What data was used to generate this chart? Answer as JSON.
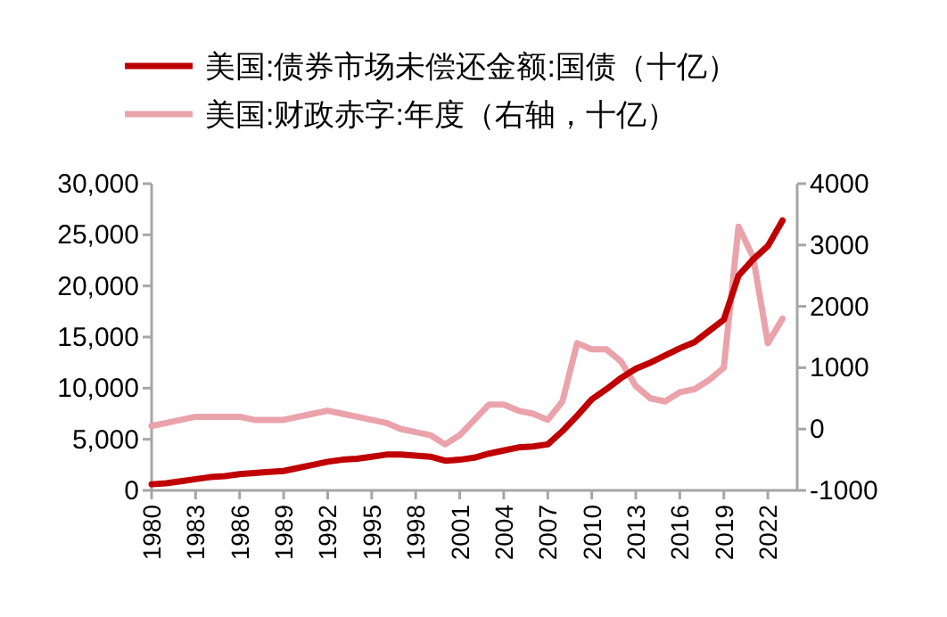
{
  "chart_data": {
    "type": "line",
    "legend": "top",
    "grid": false,
    "x": [
      1980,
      1981,
      1982,
      1983,
      1984,
      1985,
      1986,
      1987,
      1988,
      1989,
      1990,
      1991,
      1992,
      1993,
      1994,
      1995,
      1996,
      1997,
      1998,
      1999,
      2000,
      2001,
      2002,
      2003,
      2004,
      2005,
      2006,
      2007,
      2008,
      2009,
      2010,
      2011,
      2012,
      2013,
      2014,
      2015,
      2016,
      2017,
      2018,
      2019,
      2020,
      2021,
      2022,
      2023
    ],
    "xlim": [
      1980,
      2024
    ],
    "xticks": [
      1980,
      1983,
      1986,
      1989,
      1992,
      1995,
      1998,
      2001,
      2004,
      2007,
      2010,
      2013,
      2016,
      2019,
      2022
    ],
    "ylim": [
      0,
      30000
    ],
    "yticks": [
      {
        "value": 0,
        "label": "0"
      },
      {
        "value": 5000,
        "label": "5,000"
      },
      {
        "value": 10000,
        "label": "10,000"
      },
      {
        "value": 15000,
        "label": "15,000"
      },
      {
        "value": 20000,
        "label": "20,000"
      },
      {
        "value": 25000,
        "label": "25,000"
      },
      {
        "value": 30000,
        "label": "30,000"
      }
    ],
    "y2lim": [
      -1000,
      4000
    ],
    "y2ticks": [
      -1000,
      0,
      1000,
      2000,
      3000,
      4000
    ],
    "series": [
      {
        "name": "美国:债券市场未偿还金额:国债（十亿）",
        "color": "#c00000",
        "values": [
          600,
          700,
          900,
          1100,
          1300,
          1400,
          1600,
          1700,
          1800,
          1900,
          2200,
          2500,
          2800,
          3000,
          3100,
          3300,
          3500,
          3500,
          3400,
          3300,
          2900,
          3000,
          3200,
          3600,
          3900,
          4200,
          4300,
          4500,
          5800,
          7300,
          8900,
          9900,
          11000,
          11900,
          12500,
          13200,
          13900,
          14500,
          15600,
          16700,
          21000,
          22600,
          23900,
          26400
        ]
      },
      {
        "name": "美国:财政赤字:年度（右轴，十亿）",
        "color": "#eba3ab",
        "axis": "y2",
        "values": [
          50,
          100,
          150,
          200,
          200,
          200,
          200,
          150,
          150,
          150,
          200,
          250,
          300,
          250,
          200,
          150,
          100,
          0,
          -50,
          -100,
          -250,
          -100,
          150,
          400,
          400,
          300,
          250,
          150,
          450,
          1400,
          1300,
          1300,
          1100,
          700,
          500,
          450,
          600,
          650,
          800,
          1000,
          3300,
          2800,
          1400,
          1800
        ]
      }
    ]
  }
}
